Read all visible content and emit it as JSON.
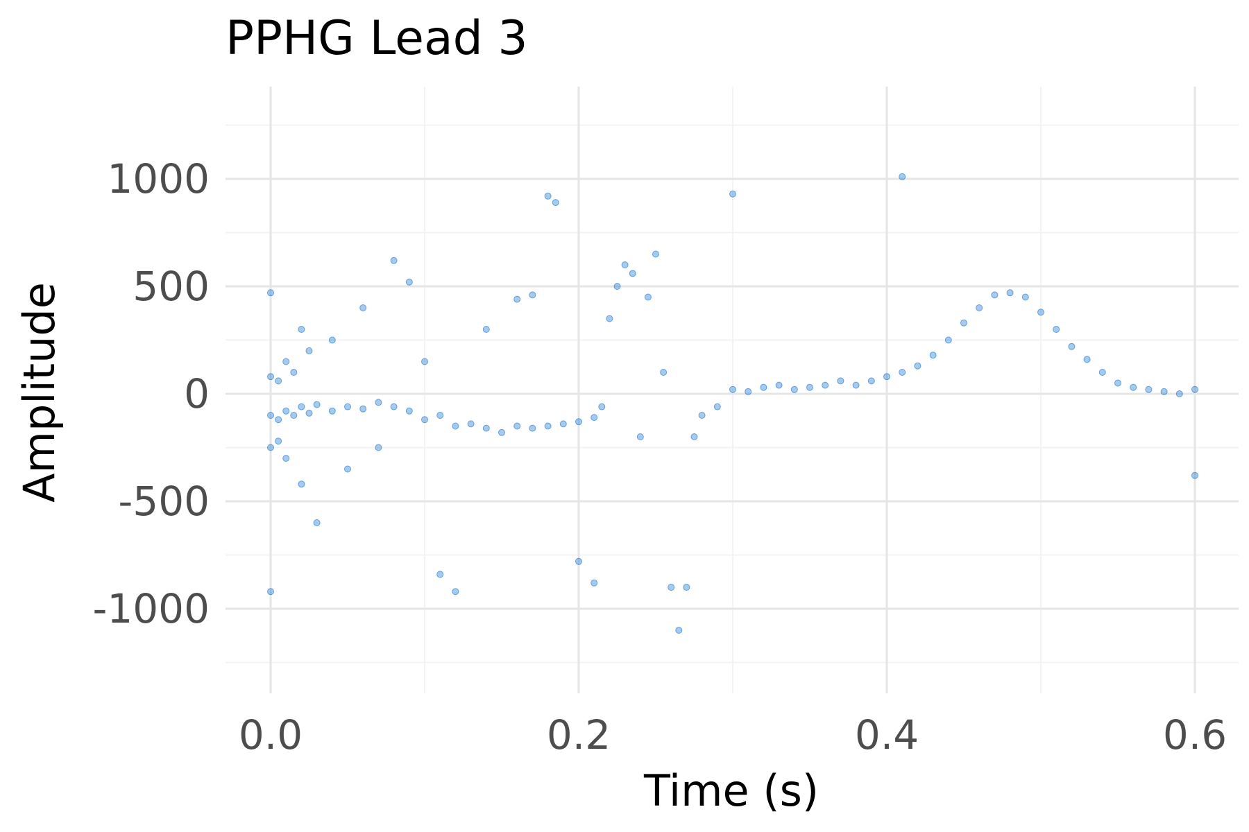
{
  "chart_data": {
    "type": "scatter",
    "title": "PPHG Lead 3",
    "xlabel": "Time (s)",
    "ylabel": "Amplitude",
    "xlim": [
      -0.03,
      0.61
    ],
    "ylim": [
      -1400,
      1400
    ],
    "x_ticks": [
      0.0,
      0.2,
      0.4,
      0.6
    ],
    "x_tick_labels": [
      "0.0",
      "0.2",
      "0.4",
      "0.6"
    ],
    "y_ticks": [
      -1000,
      -500,
      0,
      500,
      1000
    ],
    "y_tick_labels": [
      "-1000",
      "-500",
      "0",
      "500",
      "1000"
    ],
    "grid": true,
    "legend": "none",
    "point_color": "#0066cc",
    "point_opacity": 0.35,
    "series": [
      {
        "values": [
          [
            0.0,
            -100
          ],
          [
            0.0,
            80
          ],
          [
            0.0,
            -250
          ],
          [
            0.0,
            470
          ],
          [
            0.0,
            -920
          ],
          [
            0.005,
            -120
          ],
          [
            0.005,
            60
          ],
          [
            0.005,
            -220
          ],
          [
            0.01,
            -80
          ],
          [
            0.01,
            150
          ],
          [
            0.01,
            -300
          ],
          [
            0.015,
            -100
          ],
          [
            0.015,
            100
          ],
          [
            0.02,
            -60
          ],
          [
            0.02,
            300
          ],
          [
            0.02,
            -420
          ],
          [
            0.025,
            -90
          ],
          [
            0.025,
            200
          ],
          [
            0.03,
            -50
          ],
          [
            0.03,
            -600
          ],
          [
            0.04,
            -80
          ],
          [
            0.04,
            250
          ],
          [
            0.05,
            -60
          ],
          [
            0.05,
            -350
          ],
          [
            0.06,
            -70
          ],
          [
            0.06,
            400
          ],
          [
            0.07,
            -40
          ],
          [
            0.07,
            -250
          ],
          [
            0.08,
            -60
          ],
          [
            0.08,
            620
          ],
          [
            0.09,
            -80
          ],
          [
            0.09,
            520
          ],
          [
            0.1,
            -120
          ],
          [
            0.1,
            150
          ],
          [
            0.11,
            -100
          ],
          [
            0.11,
            -840
          ],
          [
            0.12,
            -150
          ],
          [
            0.12,
            -920
          ],
          [
            0.13,
            -140
          ],
          [
            0.14,
            -160
          ],
          [
            0.14,
            300
          ],
          [
            0.15,
            -180
          ],
          [
            0.16,
            -150
          ],
          [
            0.16,
            440
          ],
          [
            0.17,
            -160
          ],
          [
            0.17,
            460
          ],
          [
            0.18,
            -150
          ],
          [
            0.18,
            920
          ],
          [
            0.185,
            890
          ],
          [
            0.19,
            -140
          ],
          [
            0.2,
            -130
          ],
          [
            0.2,
            -780
          ],
          [
            0.21,
            -110
          ],
          [
            0.21,
            -880
          ],
          [
            0.215,
            -60
          ],
          [
            0.22,
            350
          ],
          [
            0.225,
            500
          ],
          [
            0.23,
            600
          ],
          [
            0.235,
            560
          ],
          [
            0.24,
            -200
          ],
          [
            0.245,
            450
          ],
          [
            0.25,
            650
          ],
          [
            0.255,
            100
          ],
          [
            0.26,
            -900
          ],
          [
            0.265,
            -1100
          ],
          [
            0.27,
            -900
          ],
          [
            0.275,
            -200
          ],
          [
            0.28,
            -100
          ],
          [
            0.29,
            -60
          ],
          [
            0.3,
            20
          ],
          [
            0.3,
            930
          ],
          [
            0.31,
            10
          ],
          [
            0.32,
            30
          ],
          [
            0.33,
            40
          ],
          [
            0.34,
            20
          ],
          [
            0.35,
            30
          ],
          [
            0.36,
            40
          ],
          [
            0.37,
            60
          ],
          [
            0.38,
            40
          ],
          [
            0.39,
            60
          ],
          [
            0.4,
            80
          ],
          [
            0.41,
            100
          ],
          [
            0.41,
            1010
          ],
          [
            0.42,
            130
          ],
          [
            0.43,
            180
          ],
          [
            0.44,
            250
          ],
          [
            0.45,
            330
          ],
          [
            0.46,
            400
          ],
          [
            0.47,
            460
          ],
          [
            0.48,
            470
          ],
          [
            0.49,
            450
          ],
          [
            0.5,
            380
          ],
          [
            0.51,
            300
          ],
          [
            0.52,
            220
          ],
          [
            0.53,
            160
          ],
          [
            0.54,
            100
          ],
          [
            0.55,
            50
          ],
          [
            0.56,
            30
          ],
          [
            0.57,
            20
          ],
          [
            0.58,
            10
          ],
          [
            0.59,
            0
          ],
          [
            0.6,
            20
          ],
          [
            0.6,
            -380
          ]
        ]
      }
    ]
  }
}
